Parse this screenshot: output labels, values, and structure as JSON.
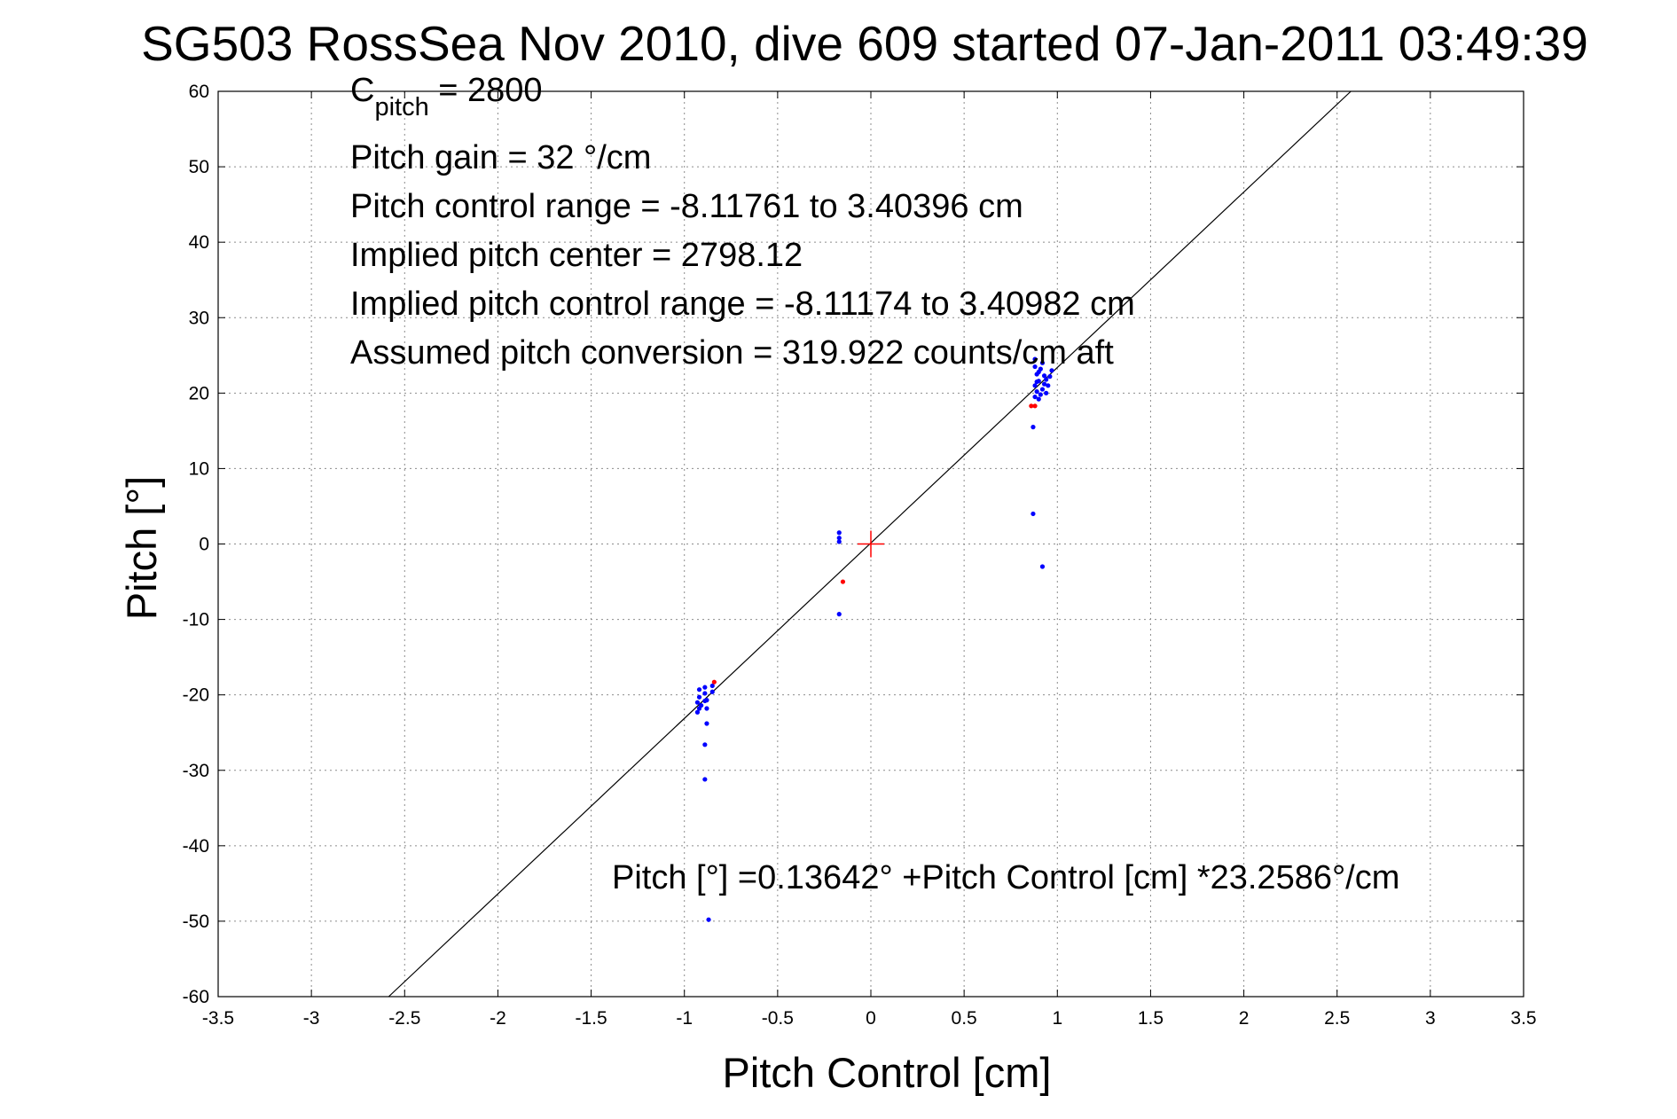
{
  "chart_data": {
    "type": "scatter",
    "title": "SG503 RossSea Nov 2010, dive 609 started 07-Jan-2011 03:49:39",
    "xlabel": "Pitch Control [cm]",
    "ylabel": "Pitch [°]",
    "xlim": [
      -3.5,
      3.5
    ],
    "ylim": [
      -60,
      60
    ],
    "xticks": [
      -3.5,
      -3,
      -2.5,
      -2,
      -1.5,
      -1,
      -0.5,
      0,
      0.5,
      1,
      1.5,
      2,
      2.5,
      3,
      3.5
    ],
    "yticks": [
      -60,
      -50,
      -40,
      -30,
      -20,
      -10,
      0,
      10,
      20,
      30,
      40,
      50,
      60
    ],
    "grid": true,
    "annotations": {
      "c_pitch_base": "C",
      "c_pitch_sub": "pitch",
      "c_pitch_value": " = 2800",
      "pitch_gain": "Pitch gain = 32 °/cm",
      "control_range": "Pitch control range = -8.11761 to 3.40396 cm",
      "implied_center": "Implied pitch center = 2798.12",
      "implied_range": "Implied pitch control range = -8.11174 to 3.40982 cm",
      "assumed_conversion": "Assumed pitch conversion = 319.922 counts/cm aft",
      "fit_equation": "Pitch [°] =0.13642° +Pitch Control [cm] *23.2586°/cm"
    },
    "fit_line": {
      "intercept": 0.13642,
      "slope": 23.2586,
      "color": "#000000"
    },
    "center_marker": {
      "x": 0,
      "y": 0,
      "color": "#ff0000"
    },
    "series": [
      {
        "name": "blue",
        "color": "#0000ff",
        "points": [
          [
            0.88,
            24.5
          ],
          [
            0.88,
            23.5
          ],
          [
            0.89,
            22.5
          ],
          [
            0.89,
            21.5
          ],
          [
            0.88,
            21.0
          ],
          [
            0.89,
            20.2
          ],
          [
            0.88,
            19.5
          ],
          [
            0.9,
            19.2
          ],
          [
            0.91,
            19.8
          ],
          [
            0.92,
            20.5
          ],
          [
            0.93,
            21.2
          ],
          [
            0.94,
            21.8
          ],
          [
            0.96,
            22.2
          ],
          [
            0.97,
            23.0
          ],
          [
            0.92,
            24.0
          ],
          [
            0.91,
            23.2
          ],
          [
            0.9,
            22.8
          ],
          [
            0.93,
            22.3
          ],
          [
            0.95,
            21.0
          ],
          [
            0.94,
            20.0
          ],
          [
            0.9,
            21.6
          ],
          [
            0.87,
            15.5
          ],
          [
            0.87,
            4.0
          ],
          [
            0.92,
            -3.0
          ],
          [
            -0.17,
            1.5
          ],
          [
            -0.17,
            0.8
          ],
          [
            -0.17,
            0.3
          ],
          [
            -0.17,
            -9.3
          ],
          [
            -0.92,
            -19.3
          ],
          [
            -0.92,
            -20.3
          ],
          [
            -0.93,
            -21.0
          ],
          [
            -0.92,
            -21.8
          ],
          [
            -0.93,
            -22.3
          ],
          [
            -0.91,
            -21.4
          ],
          [
            -0.89,
            -20.8
          ],
          [
            -0.89,
            -19.8
          ],
          [
            -0.88,
            -20.7
          ],
          [
            -0.88,
            -21.8
          ],
          [
            -0.89,
            -19.0
          ],
          [
            -0.85,
            -18.8
          ],
          [
            -0.85,
            -19.6
          ],
          [
            -0.88,
            -23.8
          ],
          [
            -0.89,
            -26.6
          ],
          [
            -0.89,
            -31.2
          ],
          [
            -0.87,
            -49.8
          ]
        ]
      },
      {
        "name": "red",
        "color": "#ff0000",
        "points": [
          [
            0.86,
            18.3
          ],
          [
            0.88,
            18.3
          ],
          [
            -0.84,
            -18.3
          ],
          [
            -0.15,
            -5.0
          ]
        ]
      }
    ]
  }
}
